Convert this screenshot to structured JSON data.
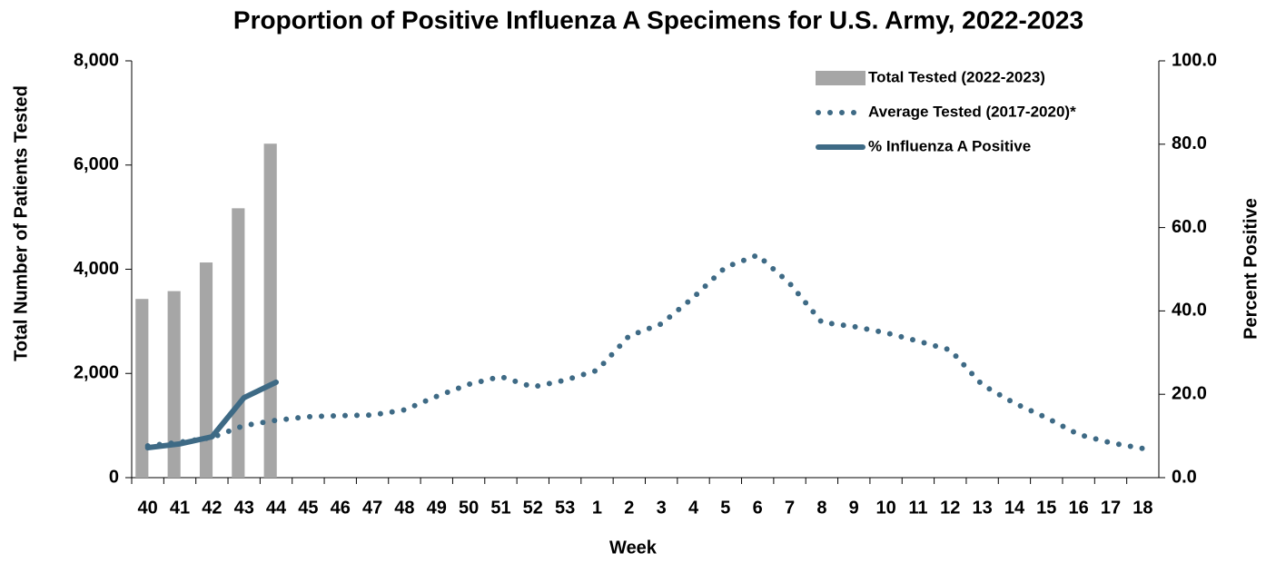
{
  "chart_data": {
    "type": "bar",
    "title": "Proportion of Positive Influenza A Specimens for U.S. Army, 2022-2023",
    "x_label": "Week",
    "y_label": "Total Number of Patients Tested",
    "y2_label": "Percent Positive",
    "categories": [
      "40",
      "41",
      "42",
      "43",
      "44",
      "45",
      "46",
      "47",
      "48",
      "49",
      "50",
      "51",
      "52",
      "53",
      "1",
      "2",
      "3",
      "4",
      "5",
      "6",
      "7",
      "8",
      "9",
      "10",
      "11",
      "12",
      "13",
      "14",
      "15",
      "16",
      "17",
      "18"
    ],
    "series": [
      {
        "name": "Total Tested (2022-2023)",
        "type": "bar",
        "color": "#a6a6a6",
        "values": [
          3430,
          3580,
          4130,
          5170,
          6410,
          null,
          null,
          null,
          null,
          null,
          null,
          null,
          null,
          null,
          null,
          null,
          null,
          null,
          null,
          null,
          null,
          null,
          null,
          null,
          null,
          null,
          null,
          null,
          null,
          null,
          null,
          null
        ]
      },
      {
        "name": "Average Tested (2017-2020)*",
        "type": "line",
        "dash": "dotted",
        "color": "#3e6a85",
        "values": [
          610,
          680,
          770,
          1000,
          1100,
          1170,
          1190,
          1200,
          1300,
          1560,
          1790,
          1940,
          1740,
          1870,
          2060,
          2720,
          2950,
          3460,
          4040,
          4270,
          3730,
          2980,
          2900,
          2780,
          2620,
          2450,
          1780,
          1430,
          1150,
          830,
          670,
          560
        ]
      },
      {
        "name": "% Influenza A Positive",
        "type": "line",
        "dash": "solid",
        "axis": "y2",
        "color": "#3e6a85",
        "values": [
          7.2,
          8.1,
          9.8,
          19.2,
          22.9,
          null,
          null,
          null,
          null,
          null,
          null,
          null,
          null,
          null,
          null,
          null,
          null,
          null,
          null,
          null,
          null,
          null,
          null,
          null,
          null,
          null,
          null,
          null,
          null,
          null,
          null,
          null
        ]
      }
    ],
    "ylim": [
      0,
      8000
    ],
    "yticks": [
      0,
      {
        "value": 2000,
        "label": "2,000"
      },
      {
        "value": 4000,
        "label": "4,000"
      },
      {
        "value": 6000,
        "label": "6,000"
      },
      {
        "value": 8000,
        "label": "8,000"
      }
    ],
    "y2lim": [
      0,
      100
    ],
    "y2ticks": [
      {
        "value": 0,
        "label": "0.0"
      },
      {
        "value": 20,
        "label": "20.0"
      },
      {
        "value": 40,
        "label": "40.0"
      },
      {
        "value": 60,
        "label": "60.0"
      },
      {
        "value": 80,
        "label": "80.0"
      },
      {
        "value": 100,
        "label": "100.0"
      }
    ],
    "legend": "top-right"
  }
}
